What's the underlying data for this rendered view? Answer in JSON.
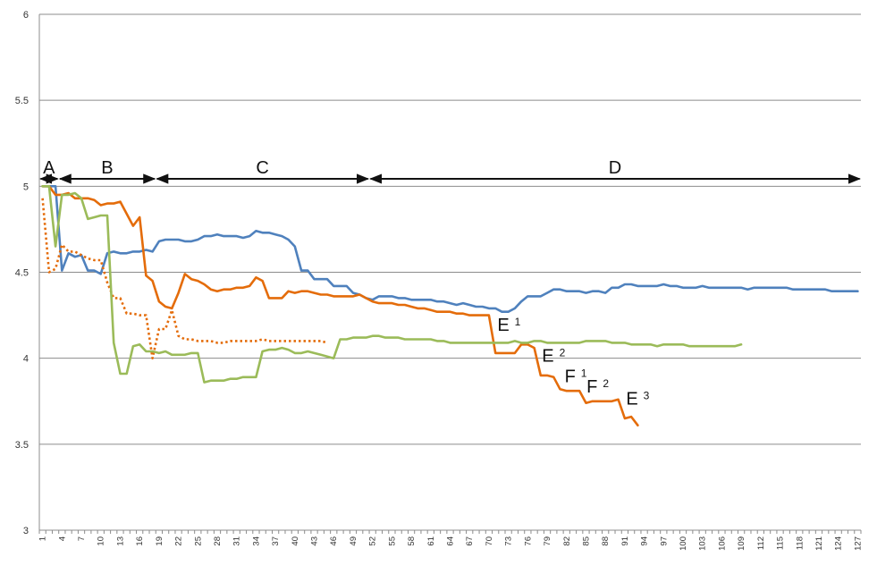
{
  "chart_data": {
    "type": "line",
    "title": "",
    "xlabel": "",
    "ylabel": "",
    "xlim": [
      1,
      127
    ],
    "ylim": [
      3,
      6
    ],
    "yticks": [
      "3",
      "3.5",
      "4",
      "4.5",
      "5",
      "5.5",
      "6"
    ],
    "xticks": [
      "1",
      "4",
      "7",
      "10",
      "13",
      "16",
      "19",
      "22",
      "25",
      "28",
      "31",
      "34",
      "37",
      "40",
      "43",
      "46",
      "49",
      "52",
      "55",
      "58",
      "61",
      "64",
      "67",
      "70",
      "73",
      "76",
      "79",
      "82",
      "85",
      "88",
      "91",
      "94",
      "97",
      "100",
      "103",
      "106",
      "109",
      "112",
      "115",
      "118",
      "121",
      "124",
      "127"
    ],
    "grid": true,
    "legend": "none",
    "phases": [
      {
        "label": "A",
        "x_start": 1,
        "x_end": 3
      },
      {
        "label": "B",
        "x_start": 4,
        "x_end": 18
      },
      {
        "label": "C",
        "x_start": 19,
        "x_end": 51
      },
      {
        "label": "D",
        "x_start": 52,
        "x_end": 127
      }
    ],
    "annotations": [
      {
        "main": "E",
        "sub": "1",
        "x": 71.3,
        "y": 4.16
      },
      {
        "main": "E",
        "sub": "2",
        "x": 78.2,
        "y": 3.98
      },
      {
        "main": "F",
        "sub": "1",
        "x": 81.7,
        "y": 3.86
      },
      {
        "main": "F",
        "sub": "2",
        "x": 85.1,
        "y": 3.8
      },
      {
        "main": "E",
        "sub": "3",
        "x": 91.2,
        "y": 3.73
      }
    ],
    "series": [
      {
        "color": "#4F81BD",
        "style": "solid",
        "x": [
          1,
          3,
          4,
          5,
          6,
          7,
          8,
          9,
          10,
          11,
          12,
          13,
          14,
          15,
          16,
          17,
          18,
          19,
          20,
          21,
          22,
          23,
          24,
          25,
          26,
          27,
          28,
          29,
          30,
          31,
          32,
          33,
          34,
          35,
          36,
          37,
          38,
          39,
          40,
          41,
          42,
          43,
          44,
          45,
          46,
          47,
          48,
          49,
          50,
          51,
          52,
          53,
          54,
          55,
          56,
          57,
          58,
          59,
          60,
          61,
          62,
          63,
          64,
          65,
          66,
          67,
          68,
          69,
          70,
          71,
          72,
          73,
          74,
          75,
          76,
          77,
          78,
          79,
          80,
          81,
          82,
          83,
          84,
          85,
          86,
          87,
          88,
          89,
          90,
          91,
          92,
          93,
          94,
          95,
          96,
          97,
          98,
          99,
          100,
          101,
          102,
          103,
          104,
          105,
          106,
          107,
          108,
          109,
          110,
          111,
          112,
          113,
          114,
          115,
          116,
          117,
          118,
          119,
          120,
          121,
          122,
          123,
          124,
          125,
          126,
          127
        ],
        "y": [
          5.0,
          5.0,
          4.51,
          4.61,
          4.59,
          4.6,
          4.51,
          4.51,
          4.49,
          4.61,
          4.62,
          4.61,
          4.61,
          4.62,
          4.62,
          4.63,
          4.62,
          4.68,
          4.69,
          4.69,
          4.69,
          4.68,
          4.68,
          4.69,
          4.71,
          4.71,
          4.72,
          4.71,
          4.71,
          4.71,
          4.7,
          4.71,
          4.74,
          4.73,
          4.73,
          4.72,
          4.71,
          4.69,
          4.65,
          4.51,
          4.51,
          4.46,
          4.46,
          4.46,
          4.42,
          4.42,
          4.42,
          4.38,
          4.37,
          4.35,
          4.34,
          4.36,
          4.36,
          4.36,
          4.35,
          4.35,
          4.34,
          4.34,
          4.34,
          4.34,
          4.33,
          4.33,
          4.32,
          4.31,
          4.32,
          4.31,
          4.3,
          4.3,
          4.29,
          4.29,
          4.27,
          4.27,
          4.29,
          4.33,
          4.36,
          4.36,
          4.36,
          4.38,
          4.4,
          4.4,
          4.39,
          4.39,
          4.39,
          4.38,
          4.39,
          4.39,
          4.38,
          4.41,
          4.41,
          4.43,
          4.43,
          4.42,
          4.42,
          4.42,
          4.42,
          4.43,
          4.42,
          4.42,
          4.41,
          4.41,
          4.41,
          4.42,
          4.41,
          4.41,
          4.41,
          4.41,
          4.41,
          4.41,
          4.4,
          4.41,
          4.41,
          4.41,
          4.41,
          4.41,
          4.41,
          4.4,
          4.4,
          4.4,
          4.4,
          4.4,
          4.4,
          4.39,
          4.39,
          4.39,
          4.39,
          4.39
        ]
      },
      {
        "color": "#E46C0A",
        "style": "solid",
        "x": [
          1,
          2,
          3,
          4,
          5,
          6,
          7,
          8,
          9,
          10,
          11,
          12,
          13,
          14,
          15,
          16,
          17,
          18,
          19,
          20,
          21,
          22,
          23,
          24,
          25,
          26,
          27,
          28,
          29,
          30,
          31,
          32,
          33,
          34,
          35,
          36,
          37,
          38,
          39,
          40,
          41,
          42,
          43,
          44,
          45,
          46,
          47,
          48,
          49,
          50,
          51,
          52,
          53,
          54,
          55,
          56,
          57,
          58,
          59,
          60,
          61,
          62,
          63,
          64,
          65,
          66,
          67,
          68,
          69,
          70,
          71,
          72,
          73,
          74,
          75,
          76,
          77,
          78,
          79,
          80,
          81,
          82,
          83,
          84,
          85,
          86,
          87,
          88,
          89,
          90,
          91,
          92,
          93
        ],
        "y": [
          5.0,
          5.0,
          4.95,
          4.95,
          4.96,
          4.93,
          4.93,
          4.93,
          4.92,
          4.89,
          4.9,
          4.9,
          4.91,
          4.84,
          4.77,
          4.82,
          4.48,
          4.45,
          4.33,
          4.3,
          4.29,
          4.38,
          4.49,
          4.46,
          4.45,
          4.43,
          4.4,
          4.39,
          4.4,
          4.4,
          4.41,
          4.41,
          4.42,
          4.47,
          4.45,
          4.35,
          4.35,
          4.35,
          4.39,
          4.38,
          4.39,
          4.39,
          4.38,
          4.37,
          4.37,
          4.36,
          4.36,
          4.36,
          4.36,
          4.37,
          4.35,
          4.33,
          4.32,
          4.32,
          4.32,
          4.31,
          4.31,
          4.3,
          4.29,
          4.29,
          4.28,
          4.27,
          4.27,
          4.27,
          4.26,
          4.26,
          4.25,
          4.25,
          4.25,
          4.25,
          4.03,
          4.03,
          4.03,
          4.03,
          4.08,
          4.08,
          4.06,
          3.9,
          3.9,
          3.89,
          3.82,
          3.81,
          3.81,
          3.81,
          3.74,
          3.75,
          3.75,
          3.75,
          3.75,
          3.76,
          3.65,
          3.66,
          3.61
        ]
      },
      {
        "color": "#E46C0A",
        "style": "dotted",
        "x": [
          1,
          2,
          3,
          4,
          5,
          6,
          7,
          8,
          9,
          10,
          11,
          12,
          13,
          14,
          15,
          16,
          17,
          18,
          19,
          20,
          21,
          22,
          23,
          24,
          25,
          26,
          27,
          28,
          29,
          30,
          31,
          32,
          33,
          34,
          35,
          36,
          37,
          38,
          39,
          40,
          41,
          42,
          43,
          44,
          45
        ],
        "y": [
          4.93,
          4.5,
          4.52,
          4.66,
          4.62,
          4.62,
          4.6,
          4.58,
          4.57,
          4.57,
          4.44,
          4.35,
          4.35,
          4.26,
          4.26,
          4.25,
          4.25,
          4.0,
          4.17,
          4.17,
          4.28,
          4.13,
          4.11,
          4.11,
          4.1,
          4.1,
          4.1,
          4.09,
          4.09,
          4.1,
          4.1,
          4.1,
          4.1,
          4.1,
          4.11,
          4.1,
          4.1,
          4.1,
          4.1,
          4.1,
          4.1,
          4.1,
          4.1,
          4.1,
          4.09
        ]
      },
      {
        "color": "#9BBB59",
        "style": "solid",
        "x": [
          1,
          2,
          3,
          4,
          5,
          6,
          7,
          8,
          9,
          10,
          11,
          12,
          13,
          14,
          15,
          16,
          17,
          18,
          19,
          20,
          21,
          22,
          23,
          24,
          25,
          26,
          27,
          28,
          29,
          30,
          31,
          32,
          33,
          34,
          35,
          36,
          37,
          38,
          39,
          40,
          41,
          42,
          43,
          44,
          45,
          46,
          47,
          48,
          49,
          50,
          51,
          52,
          53,
          54,
          55,
          56,
          57,
          58,
          59,
          60,
          61,
          62,
          63,
          64,
          65,
          66,
          67,
          68,
          69,
          70,
          71,
          72,
          73,
          74,
          75,
          76,
          77,
          78,
          79,
          80,
          81,
          82,
          83,
          84,
          85,
          86,
          87,
          88,
          89,
          90,
          91,
          92,
          93,
          94,
          95,
          96,
          97,
          98,
          99,
          100,
          101,
          102,
          103,
          104,
          105,
          106,
          107,
          108,
          109
        ],
        "y": [
          5.0,
          5.0,
          4.65,
          4.95,
          4.95,
          4.96,
          4.93,
          4.81,
          4.82,
          4.83,
          4.83,
          4.09,
          3.91,
          3.91,
          4.07,
          4.08,
          4.04,
          4.04,
          4.03,
          4.04,
          4.02,
          4.02,
          4.02,
          4.03,
          4.03,
          3.86,
          3.87,
          3.87,
          3.87,
          3.88,
          3.88,
          3.89,
          3.89,
          3.89,
          4.04,
          4.05,
          4.05,
          4.06,
          4.05,
          4.03,
          4.03,
          4.04,
          4.03,
          4.02,
          4.01,
          4.0,
          4.11,
          4.11,
          4.12,
          4.12,
          4.12,
          4.13,
          4.13,
          4.12,
          4.12,
          4.12,
          4.11,
          4.11,
          4.11,
          4.11,
          4.11,
          4.1,
          4.1,
          4.09,
          4.09,
          4.09,
          4.09,
          4.09,
          4.09,
          4.09,
          4.09,
          4.09,
          4.09,
          4.1,
          4.09,
          4.09,
          4.1,
          4.1,
          4.09,
          4.09,
          4.09,
          4.09,
          4.09,
          4.09,
          4.1,
          4.1,
          4.1,
          4.1,
          4.09,
          4.09,
          4.09,
          4.08,
          4.08,
          4.08,
          4.08,
          4.07,
          4.08,
          4.08,
          4.08,
          4.08,
          4.07,
          4.07,
          4.07,
          4.07,
          4.07,
          4.07,
          4.07,
          4.07,
          4.08
        ]
      }
    ]
  }
}
